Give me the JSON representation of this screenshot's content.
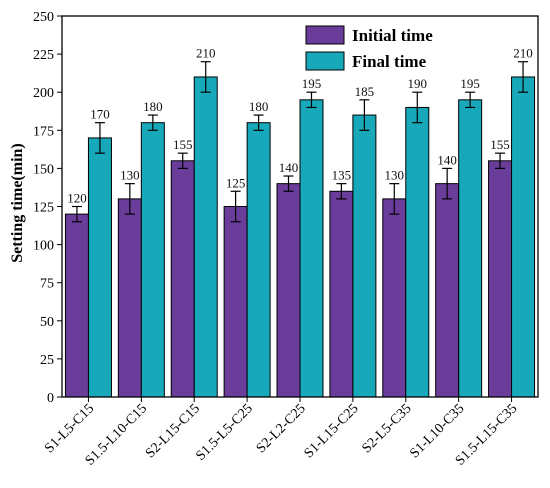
{
  "chart_data": {
    "type": "bar",
    "categories": [
      "S1-L5-C15",
      "S1.5-L10-C15",
      "S2-L15-C15",
      "S1.5-L5-C25",
      "S2-L2-C25",
      "S1-L15-C25",
      "S2-L5-C35",
      "S1-L10-C35",
      "S1.5-L15-C35"
    ],
    "series": [
      {
        "name": "Initial time",
        "color": "#6a3d9a",
        "values": [
          120,
          130,
          155,
          125,
          140,
          135,
          130,
          140,
          155
        ],
        "errors": [
          5,
          10,
          5,
          10,
          5,
          5,
          10,
          10,
          5
        ]
      },
      {
        "name": "Final time",
        "color": "#17a9b9",
        "values": [
          170,
          180,
          210,
          180,
          195,
          185,
          190,
          195,
          210
        ],
        "errors": [
          10,
          5,
          10,
          5,
          5,
          10,
          10,
          5,
          10
        ]
      }
    ],
    "ylabel": "Setting time(min)",
    "xlabel": "",
    "ylim": [
      0,
      250
    ],
    "yticks": [
      0,
      25,
      50,
      75,
      100,
      125,
      150,
      175,
      200,
      225,
      250
    ],
    "grid": false,
    "legend_position": "top-right"
  }
}
